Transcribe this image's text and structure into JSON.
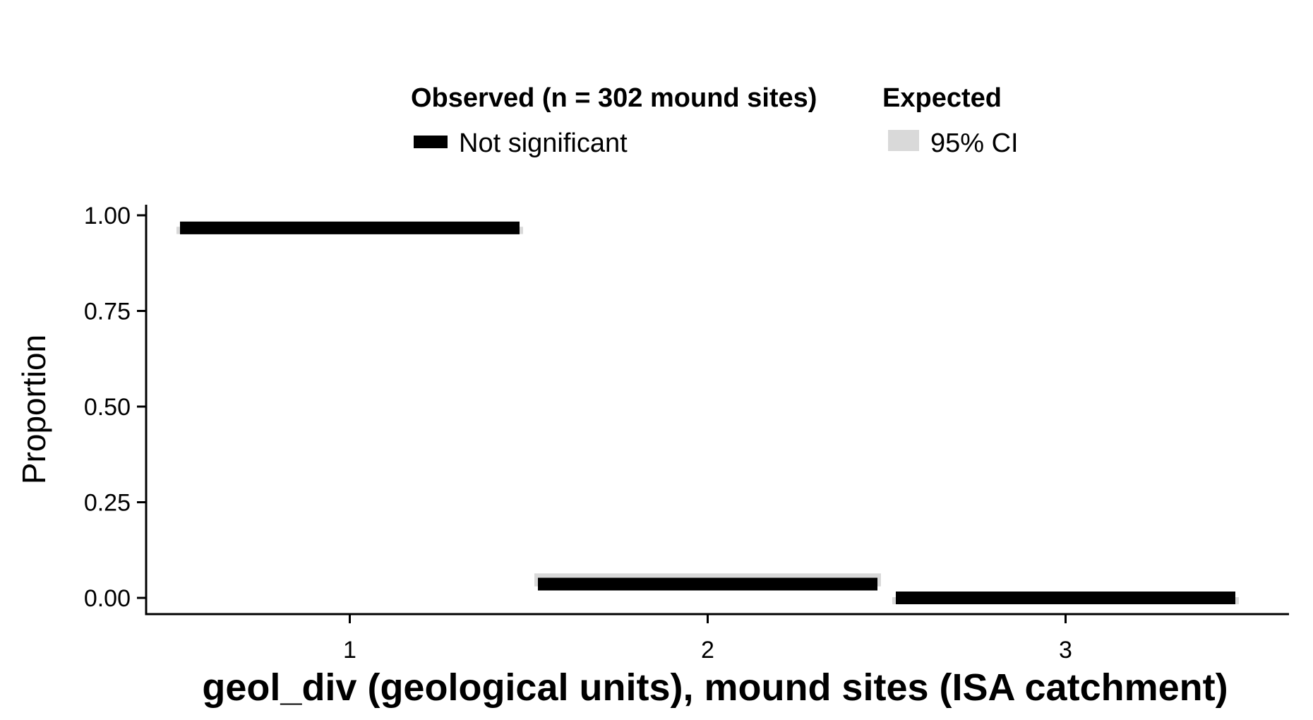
{
  "chart_data": {
    "type": "bar",
    "categories": [
      "1",
      "2",
      "3"
    ],
    "xlabel": "geol_div (geological units), mound sites (ISA catchment)",
    "ylabel": "Proportion",
    "ylim": [
      0,
      1.0
    ],
    "yticks": [
      "0.00",
      "0.25",
      "0.50",
      "0.75",
      "1.00"
    ],
    "ytick_values": [
      0,
      0.25,
      0.5,
      0.75,
      1.0
    ],
    "grid": false,
    "legend_placement": "top",
    "legend": {
      "observed": {
        "title": "Observed (n = 302 mound sites)",
        "entries": [
          {
            "label": "Not significant",
            "color": "#000000"
          }
        ]
      },
      "expected": {
        "title": "Expected",
        "entries": [
          {
            "label": "95% CI",
            "color": "#d9d9d9"
          }
        ]
      }
    },
    "series": [
      {
        "name": "Observed (n = 302 mound sites)",
        "color": "#000000",
        "values": [
          0.967,
          0.036,
          0.0
        ]
      }
    ],
    "expected_ci": {
      "color": "#d9d9d9",
      "lower": [
        0.951,
        0.03,
        0.0
      ],
      "upper": [
        0.97,
        0.064,
        0.0
      ]
    }
  }
}
